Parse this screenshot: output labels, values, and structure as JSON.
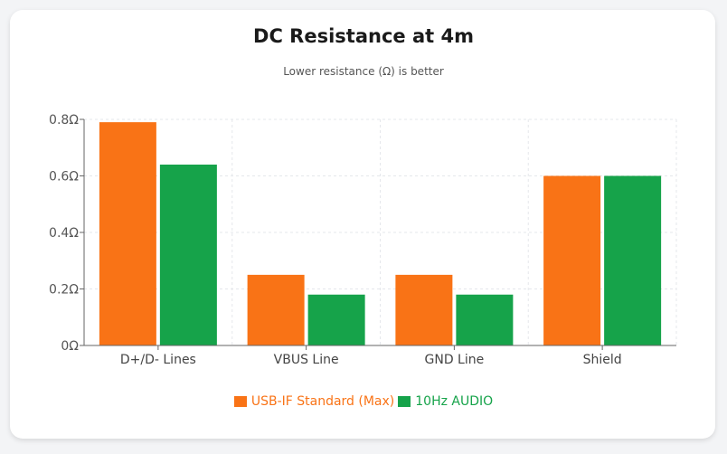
{
  "chart_data": {
    "type": "bar",
    "title": "DC Resistance at 4m",
    "subtitle": "Lower resistance (Ω) is better",
    "categories": [
      "D+/D- Lines",
      "VBUS Line",
      "GND Line",
      "Shield"
    ],
    "series": [
      {
        "name": "USB-IF Standard (Max)",
        "color": "#f97316",
        "values": [
          0.79,
          0.25,
          0.25,
          0.6
        ]
      },
      {
        "name": "10Hz AUDIO",
        "color": "#16a34a",
        "values": [
          0.64,
          0.18,
          0.18,
          0.6
        ]
      }
    ],
    "ylim": [
      0,
      0.8
    ],
    "yticks": [
      {
        "value": 0,
        "label": "0Ω"
      },
      {
        "value": 0.2,
        "label": "0.2Ω"
      },
      {
        "value": 0.4,
        "label": "0.4Ω"
      },
      {
        "value": 0.6,
        "label": "0.6Ω"
      },
      {
        "value": 0.8,
        "label": "0.8Ω"
      }
    ],
    "grid": true,
    "legend_position": "bottom"
  }
}
